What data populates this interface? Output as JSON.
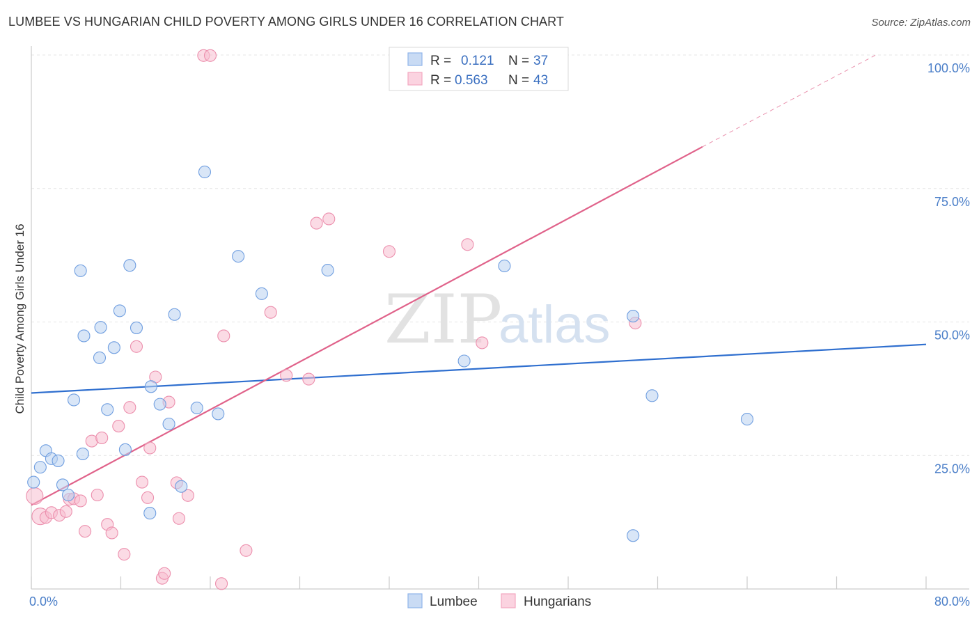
{
  "header": {
    "title": "LUMBEE VS HUNGARIAN CHILD POVERTY AMONG GIRLS UNDER 16 CORRELATION CHART",
    "source": "Source: ZipAtlas.com"
  },
  "watermark": {
    "zip": "ZIP",
    "atlas": "atlas"
  },
  "chart_data": {
    "type": "scatter",
    "title": "LUMBEE VS HUNGARIAN CHILD POVERTY AMONG GIRLS UNDER 16 CORRELATION CHART",
    "xlabel": "",
    "ylabel": "Child Poverty Among Girls Under 16",
    "xlim": [
      0,
      80
    ],
    "ylim": [
      0,
      100
    ],
    "x_tick_labels": [
      "0.0%",
      "80.0%"
    ],
    "y_ticks": [
      25,
      50,
      75,
      100
    ],
    "y_tick_labels": [
      "25.0%",
      "50.0%",
      "75.0%",
      "100.0%"
    ],
    "grid": true,
    "legend_position": "top-center",
    "colors": {
      "lumbee": "#8fb5ea",
      "lumbee_line": "#2f6fcf",
      "hungarians": "#f4a8c0",
      "hungarians_line": "#e0628a"
    },
    "series": [
      {
        "name": "Lumbee",
        "R": "0.121",
        "N": "37",
        "trend": {
          "x": [
            0,
            80
          ],
          "y": [
            36.7,
            45.8
          ]
        },
        "points": [
          [
            0.2,
            20.0
          ],
          [
            0.8,
            22.8
          ],
          [
            1.3,
            25.9
          ],
          [
            1.8,
            24.4
          ],
          [
            2.4,
            24.0
          ],
          [
            2.8,
            19.5
          ],
          [
            3.3,
            17.6
          ],
          [
            3.8,
            35.4
          ],
          [
            4.6,
            25.3
          ],
          [
            4.4,
            59.6
          ],
          [
            4.7,
            47.4
          ],
          [
            6.2,
            49.0
          ],
          [
            6.1,
            43.3
          ],
          [
            6.8,
            33.6
          ],
          [
            7.4,
            45.2
          ],
          [
            7.9,
            52.1
          ],
          [
            8.4,
            26.1
          ],
          [
            8.8,
            60.6
          ],
          [
            9.4,
            48.9
          ],
          [
            10.7,
            37.9
          ],
          [
            10.6,
            14.2
          ],
          [
            11.5,
            34.6
          ],
          [
            12.3,
            30.9
          ],
          [
            12.8,
            51.4
          ],
          [
            13.4,
            19.2
          ],
          [
            14.8,
            33.9
          ],
          [
            15.5,
            78.1
          ],
          [
            16.7,
            32.8
          ],
          [
            18.5,
            62.3
          ],
          [
            20.6,
            55.3
          ],
          [
            26.5,
            59.7
          ],
          [
            38.7,
            42.7
          ],
          [
            42.3,
            60.5
          ],
          [
            53.8,
            51.1
          ],
          [
            53.8,
            10.0
          ],
          [
            55.5,
            36.2
          ],
          [
            64.0,
            31.8
          ]
        ]
      },
      {
        "name": "Hungarians",
        "R": "0.563",
        "N": "43",
        "trend": {
          "x": [
            0,
            60
          ],
          "y": [
            15.7,
            82.8
          ]
        },
        "trend_dashed": {
          "x": [
            60,
            75.5
          ],
          "y": [
            82.8,
            100.0
          ]
        },
        "points": [
          [
            0.3,
            17.4
          ],
          [
            0.8,
            13.6
          ],
          [
            1.3,
            13.4
          ],
          [
            1.8,
            14.3
          ],
          [
            2.5,
            13.8
          ],
          [
            3.1,
            14.5
          ],
          [
            3.4,
            16.8
          ],
          [
            3.8,
            16.9
          ],
          [
            4.4,
            16.5
          ],
          [
            4.8,
            10.8
          ],
          [
            5.4,
            27.7
          ],
          [
            5.9,
            17.6
          ],
          [
            6.3,
            28.3
          ],
          [
            6.8,
            12.1
          ],
          [
            7.2,
            10.5
          ],
          [
            7.8,
            30.5
          ],
          [
            8.3,
            6.5
          ],
          [
            8.8,
            34.0
          ],
          [
            9.4,
            45.4
          ],
          [
            9.9,
            20.0
          ],
          [
            10.4,
            17.1
          ],
          [
            10.6,
            26.4
          ],
          [
            11.1,
            39.7
          ],
          [
            11.7,
            2.0
          ],
          [
            11.9,
            2.9
          ],
          [
            12.3,
            35.0
          ],
          [
            13.0,
            19.9
          ],
          [
            13.2,
            13.2
          ],
          [
            14.0,
            17.5
          ],
          [
            15.4,
            99.9
          ],
          [
            16.0,
            99.9
          ],
          [
            17.0,
            1.0
          ],
          [
            17.2,
            47.4
          ],
          [
            19.2,
            7.2
          ],
          [
            21.4,
            51.8
          ],
          [
            22.8,
            40.0
          ],
          [
            24.8,
            39.3
          ],
          [
            25.5,
            68.5
          ],
          [
            26.6,
            69.3
          ],
          [
            32.0,
            63.2
          ],
          [
            39.0,
            64.5
          ],
          [
            40.3,
            46.1
          ],
          [
            54.0,
            49.8
          ]
        ]
      }
    ]
  }
}
